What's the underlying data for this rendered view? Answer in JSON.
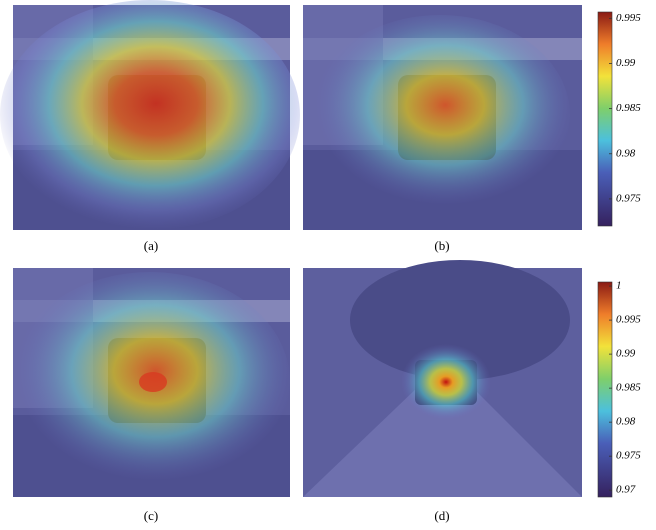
{
  "panels": [
    {
      "label": "(a)"
    },
    {
      "label": "(b)"
    },
    {
      "label": "(c)"
    },
    {
      "label": "(d)"
    }
  ],
  "colorbars": [
    {
      "range": [
        0.972,
        0.9957
      ],
      "ticks": [
        0.995,
        0.99,
        0.985,
        0.98,
        0.975
      ]
    },
    {
      "range": [
        0.969,
        1.0006
      ],
      "ticks": [
        1,
        0.995,
        0.99,
        0.985,
        0.98,
        0.975,
        0.97
      ]
    }
  ]
}
